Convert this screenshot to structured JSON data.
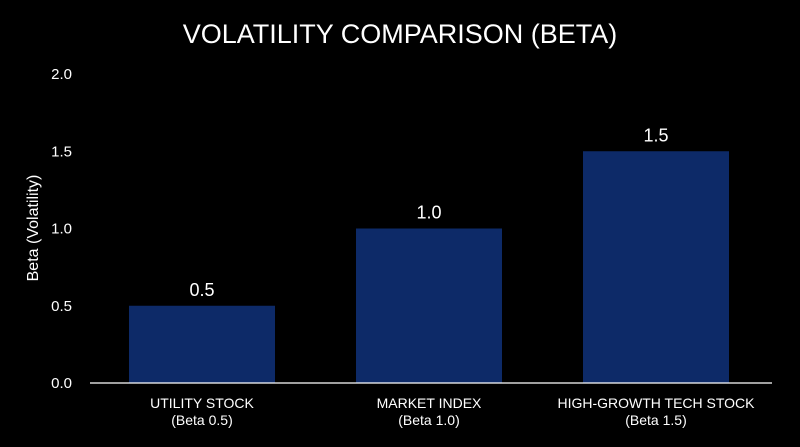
{
  "chart_data": {
    "type": "bar",
    "title": "VOLATILITY COMPARISON (BETA)",
    "xlabel": "",
    "ylabel": "Beta (Volatility)",
    "ylim": [
      0,
      2.0
    ],
    "yticks": [
      "0.0",
      "0.5",
      "1.0",
      "1.5",
      "2.0"
    ],
    "ytick_values": [
      0,
      0.5,
      1.0,
      1.5,
      2.0
    ],
    "categories": [
      [
        "UTILITY STOCK",
        "(Beta 0.5)"
      ],
      [
        "MARKET INDEX",
        "(Beta 1.0)"
      ],
      [
        "HIGH-GROWTH TECH STOCK",
        "(Beta 1.5)"
      ]
    ],
    "values": [
      0.5,
      1.0,
      1.5
    ],
    "data_labels": [
      "0.5",
      "1.0",
      "1.5"
    ],
    "grid": false,
    "legend": "none",
    "colors": {
      "background": "#000000",
      "bar": "#0d2a68",
      "text": "#ffffff",
      "axis": "#ffffff"
    }
  }
}
